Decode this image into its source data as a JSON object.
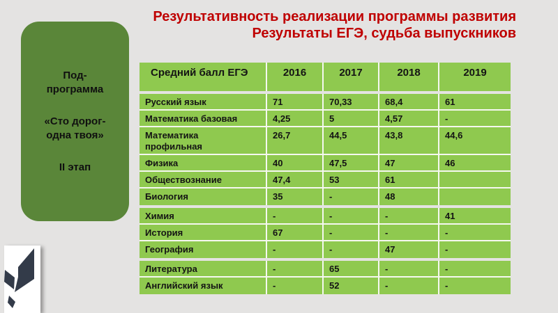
{
  "colors": {
    "background": "#e4e3e2",
    "title_red": "#bf0000",
    "panel_green": "#5a8639",
    "table_green": "#8fc94f",
    "logo_slate": "#333b49",
    "grid_line": "#f5f8f0"
  },
  "title": {
    "line1": "Результативность реализации программы развития",
    "line2": "Результаты ЕГЭ, судьба выпускников"
  },
  "side_panel": {
    "paragraphs": [
      "Под-программа",
      "«Сто дорог-одна твоя»",
      "II этап"
    ]
  },
  "table": {
    "header": {
      "label": "Средний балл ЕГЭ",
      "years": [
        "2016",
        "2017",
        "2018",
        "2019"
      ]
    },
    "groups": [
      {
        "rows": [
          {
            "subject": "Русский язык",
            "values": [
              "71",
              "70,33",
              "68,4",
              "61"
            ]
          },
          {
            "subject": "Математика базовая",
            "values": [
              "4,25",
              "5",
              "4,57",
              "-"
            ]
          },
          {
            "subject": "Математика профильная",
            "values": [
              "26,7",
              "44,5",
              "43,8",
              "44,6"
            ]
          },
          {
            "subject": "Физика",
            "values": [
              "40",
              "47,5",
              "47",
              "46"
            ]
          },
          {
            "subject": "Обществознание",
            "values": [
              "47,4",
              "53",
              "61",
              ""
            ]
          },
          {
            "subject": "Биология",
            "values": [
              "35",
              "-",
              "48",
              ""
            ]
          }
        ]
      },
      {
        "rows": [
          {
            "subject": "Химия",
            "values": [
              "-",
              "-",
              "-",
              "41"
            ]
          },
          {
            "subject": "История",
            "values": [
              "67",
              "-",
              "-",
              "-"
            ]
          },
          {
            "subject": "География",
            "values": [
              "-",
              "-",
              "47",
              "-"
            ]
          }
        ]
      },
      {
        "rows": [
          {
            "subject": "Литература",
            "values": [
              "-",
              "65",
              "-",
              "-"
            ]
          },
          {
            "subject": "Английский язык",
            "values": [
              "-",
              "52",
              "-",
              "-"
            ]
          }
        ]
      }
    ]
  },
  "logo": {
    "icon": "feather-ribbon-icon"
  }
}
